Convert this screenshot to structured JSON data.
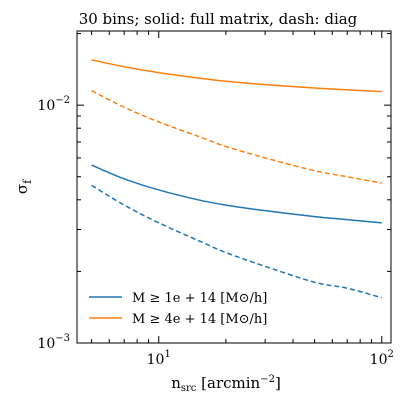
{
  "chart_data": {
    "type": "line",
    "title": "30 bins; solid: full matrix, dash: diag",
    "xlabel": "n_src [arcmin^-2]",
    "ylabel": "σ_f",
    "xscale": "log",
    "yscale": "log",
    "xlim": [
      4.3,
      110
    ],
    "ylim": [
      0.001,
      0.0205
    ],
    "legend_position": "lower-left",
    "x_tick_labels": [
      {
        "value": 10,
        "label": "10",
        "exp": "1"
      },
      {
        "value": 100,
        "label": "10",
        "exp": "2"
      }
    ],
    "y_tick_labels": [
      {
        "value": 0.001,
        "label": "10",
        "exp": "−3"
      },
      {
        "value": 0.01,
        "label": "10",
        "exp": "−2"
      }
    ],
    "series": [
      {
        "name": "M ≥ 1e+14 [M⊙/h]",
        "color": "#1f77b4",
        "style": "solid",
        "x": [
          5,
          7,
          10,
          15,
          20,
          30,
          50,
          70,
          100
        ],
        "y": [
          0.0056,
          0.0049,
          0.0044,
          0.004,
          0.0038,
          0.0036,
          0.0034,
          0.0033,
          0.0032
        ]
      },
      {
        "name": "M ≥ 1e+14 [M⊙/h]",
        "color": "#1f77b4",
        "style": "dashed",
        "x": [
          5,
          7,
          10,
          15,
          20,
          30,
          50,
          70,
          100
        ],
        "y": [
          0.0046,
          0.0038,
          0.0032,
          0.0027,
          0.0024,
          0.0021,
          0.0018,
          0.0017,
          0.00155
        ]
      },
      {
        "name": "M ≥ 4e+14 [M⊙/h]",
        "color": "#ff7f0e",
        "style": "solid",
        "x": [
          5,
          7,
          10,
          15,
          20,
          30,
          50,
          70,
          100
        ],
        "y": [
          0.0155,
          0.0145,
          0.0137,
          0.013,
          0.0126,
          0.0122,
          0.0118,
          0.0116,
          0.0114
        ]
      },
      {
        "name": "M ≥ 4e+14 [M⊙/h]",
        "color": "#ff7f0e",
        "style": "dashed",
        "x": [
          5,
          7,
          10,
          15,
          20,
          30,
          50,
          70,
          100
        ],
        "y": [
          0.0115,
          0.0098,
          0.0085,
          0.0074,
          0.0067,
          0.006,
          0.0053,
          0.005,
          0.0047
        ]
      }
    ],
    "legend": [
      {
        "label": "M ≥ 1e + 14 [M⊙/h]",
        "color": "#1f77b4"
      },
      {
        "label": "M ≥ 4e + 14 [M⊙/h]",
        "color": "#ff7f0e"
      }
    ]
  }
}
